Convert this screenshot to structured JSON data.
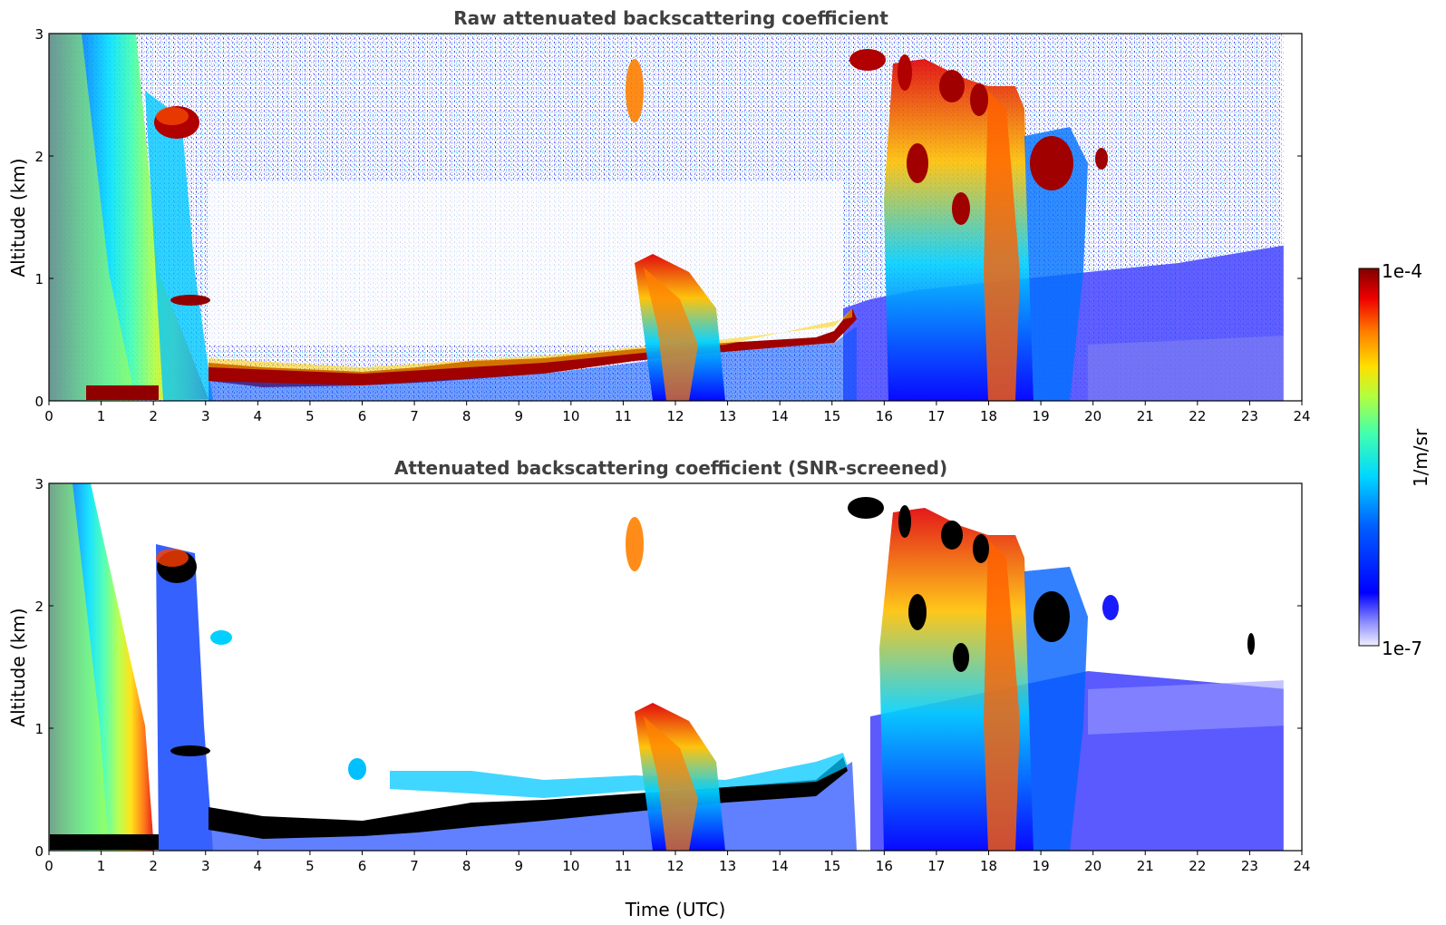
{
  "chart_data": [
    {
      "type": "heatmap",
      "title": "Raw attenuated backscattering coefficient",
      "xlabel": "",
      "ylabel": "Altitude (km)",
      "xlim": [
        0,
        24
      ],
      "ylim": [
        0,
        3
      ],
      "xticks": [
        "0",
        "1",
        "2",
        "3",
        "4",
        "5",
        "6",
        "7",
        "8",
        "9",
        "10",
        "11",
        "12",
        "13",
        "14",
        "15",
        "16",
        "17",
        "18",
        "19",
        "20",
        "21",
        "22",
        "23",
        "24"
      ],
      "yticks": [
        "0",
        "1",
        "2",
        "3"
      ],
      "data_end_hour": 23.65,
      "features": [
        {
          "feature": "boundary layer top",
          "x": [
            0.0,
            1.0,
            2.0,
            3.0,
            4.0,
            5.0,
            6.0,
            7.0,
            8.0,
            9.0,
            10.0,
            11.0,
            12.0,
            13.0,
            14.0,
            15.0,
            15.5
          ],
          "y": [
            0.05,
            0.05,
            0.08,
            0.28,
            0.2,
            0.2,
            0.25,
            0.4,
            0.35,
            0.3,
            0.35,
            0.45,
            0.45,
            0.45,
            0.45,
            0.5,
            0.7
          ]
        },
        {
          "feature": "cloud",
          "x": [
            1.0,
            2.2,
            3.0,
            11.7,
            12.2,
            15.7,
            16.5,
            17.0,
            17.5,
            18.0,
            18.3,
            19.3,
            20.3
          ],
          "y": [
            0.05,
            2.3,
            0.8,
            0.7,
            0.4,
            2.8,
            2.7,
            2.0,
            2.6,
            2.5,
            0.5,
            2.0,
            2.0
          ]
        }
      ]
    },
    {
      "type": "heatmap",
      "title": "Attenuated backscattering coefficient (SNR-screened)",
      "xlabel": "Time (UTC)",
      "ylabel": "Altitude (km)",
      "xlim": [
        0,
        24
      ],
      "ylim": [
        0,
        3
      ],
      "xticks": [
        "0",
        "1",
        "2",
        "3",
        "4",
        "5",
        "6",
        "7",
        "8",
        "9",
        "10",
        "11",
        "12",
        "13",
        "14",
        "15",
        "16",
        "17",
        "18",
        "19",
        "20",
        "21",
        "22",
        "23",
        "24"
      ],
      "yticks": [
        "0",
        "1",
        "2",
        "3"
      ],
      "data_end_hour": 23.65
    }
  ],
  "colorbar": {
    "label": "1/m/sr",
    "max_label": "1e-4",
    "min_label": "1e-7",
    "colormap": [
      "#f2f2ff",
      "#b4b4ff",
      "#6060ff",
      "#0000ff",
      "#0080ff",
      "#00e0ff",
      "#40ffb0",
      "#b0ff40",
      "#ffe000",
      "#ff8000",
      "#ff2000",
      "#b00000",
      "#800000"
    ]
  }
}
